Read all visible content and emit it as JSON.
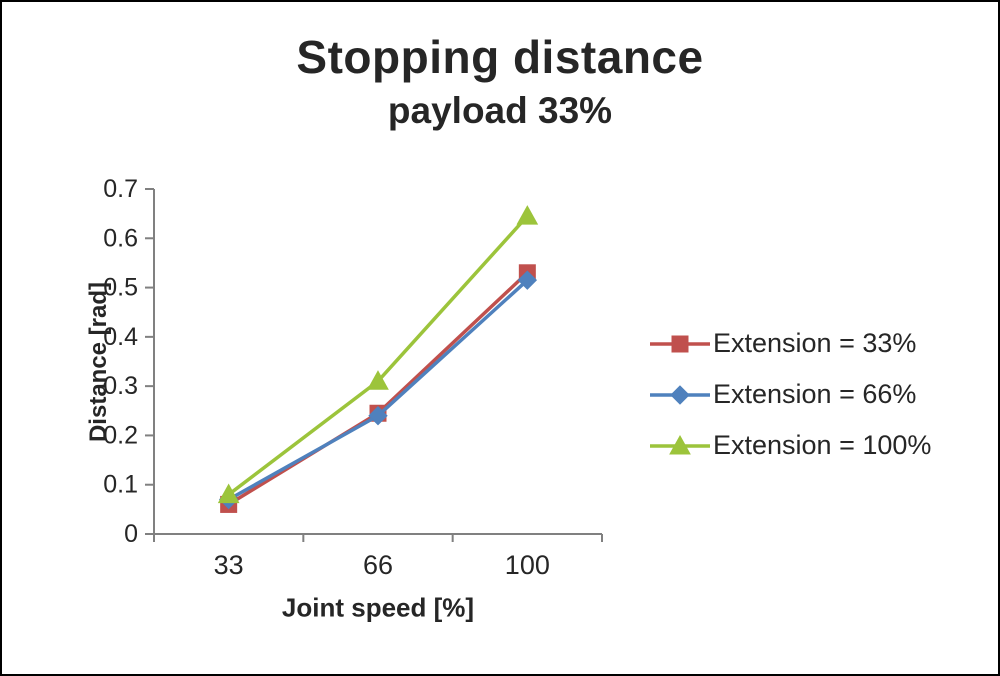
{
  "title": "Stopping distance",
  "subtitle": "payload 33%",
  "chart_data": {
    "type": "line",
    "categories": [
      "33",
      "66",
      "100"
    ],
    "x": [
      33,
      66,
      100
    ],
    "series": [
      {
        "name": "Extension = 33%",
        "color": "#C0504D",
        "marker": "square",
        "values": [
          0.06,
          0.245,
          0.53
        ]
      },
      {
        "name": "Extension = 66%",
        "color": "#4F81BD",
        "marker": "diamond",
        "values": [
          0.07,
          0.24,
          0.515
        ]
      },
      {
        "name": "Extension = 100%",
        "color": "#9CC43B",
        "marker": "triangle",
        "values": [
          0.08,
          0.31,
          0.645
        ]
      }
    ],
    "title": "Stopping distance",
    "subtitle": "payload 33%",
    "xlabel": "Joint speed [%]",
    "ylabel": "Distance [rad]",
    "ylim": [
      0,
      0.7
    ],
    "ytick_step": 0.1,
    "yticks": [
      "0",
      "0.1",
      "0.2",
      "0.3",
      "0.4",
      "0.5",
      "0.6",
      "0.7"
    ],
    "grid": false,
    "legend_position": "right",
    "axis_color": "#808080",
    "text_color": "#262626"
  }
}
